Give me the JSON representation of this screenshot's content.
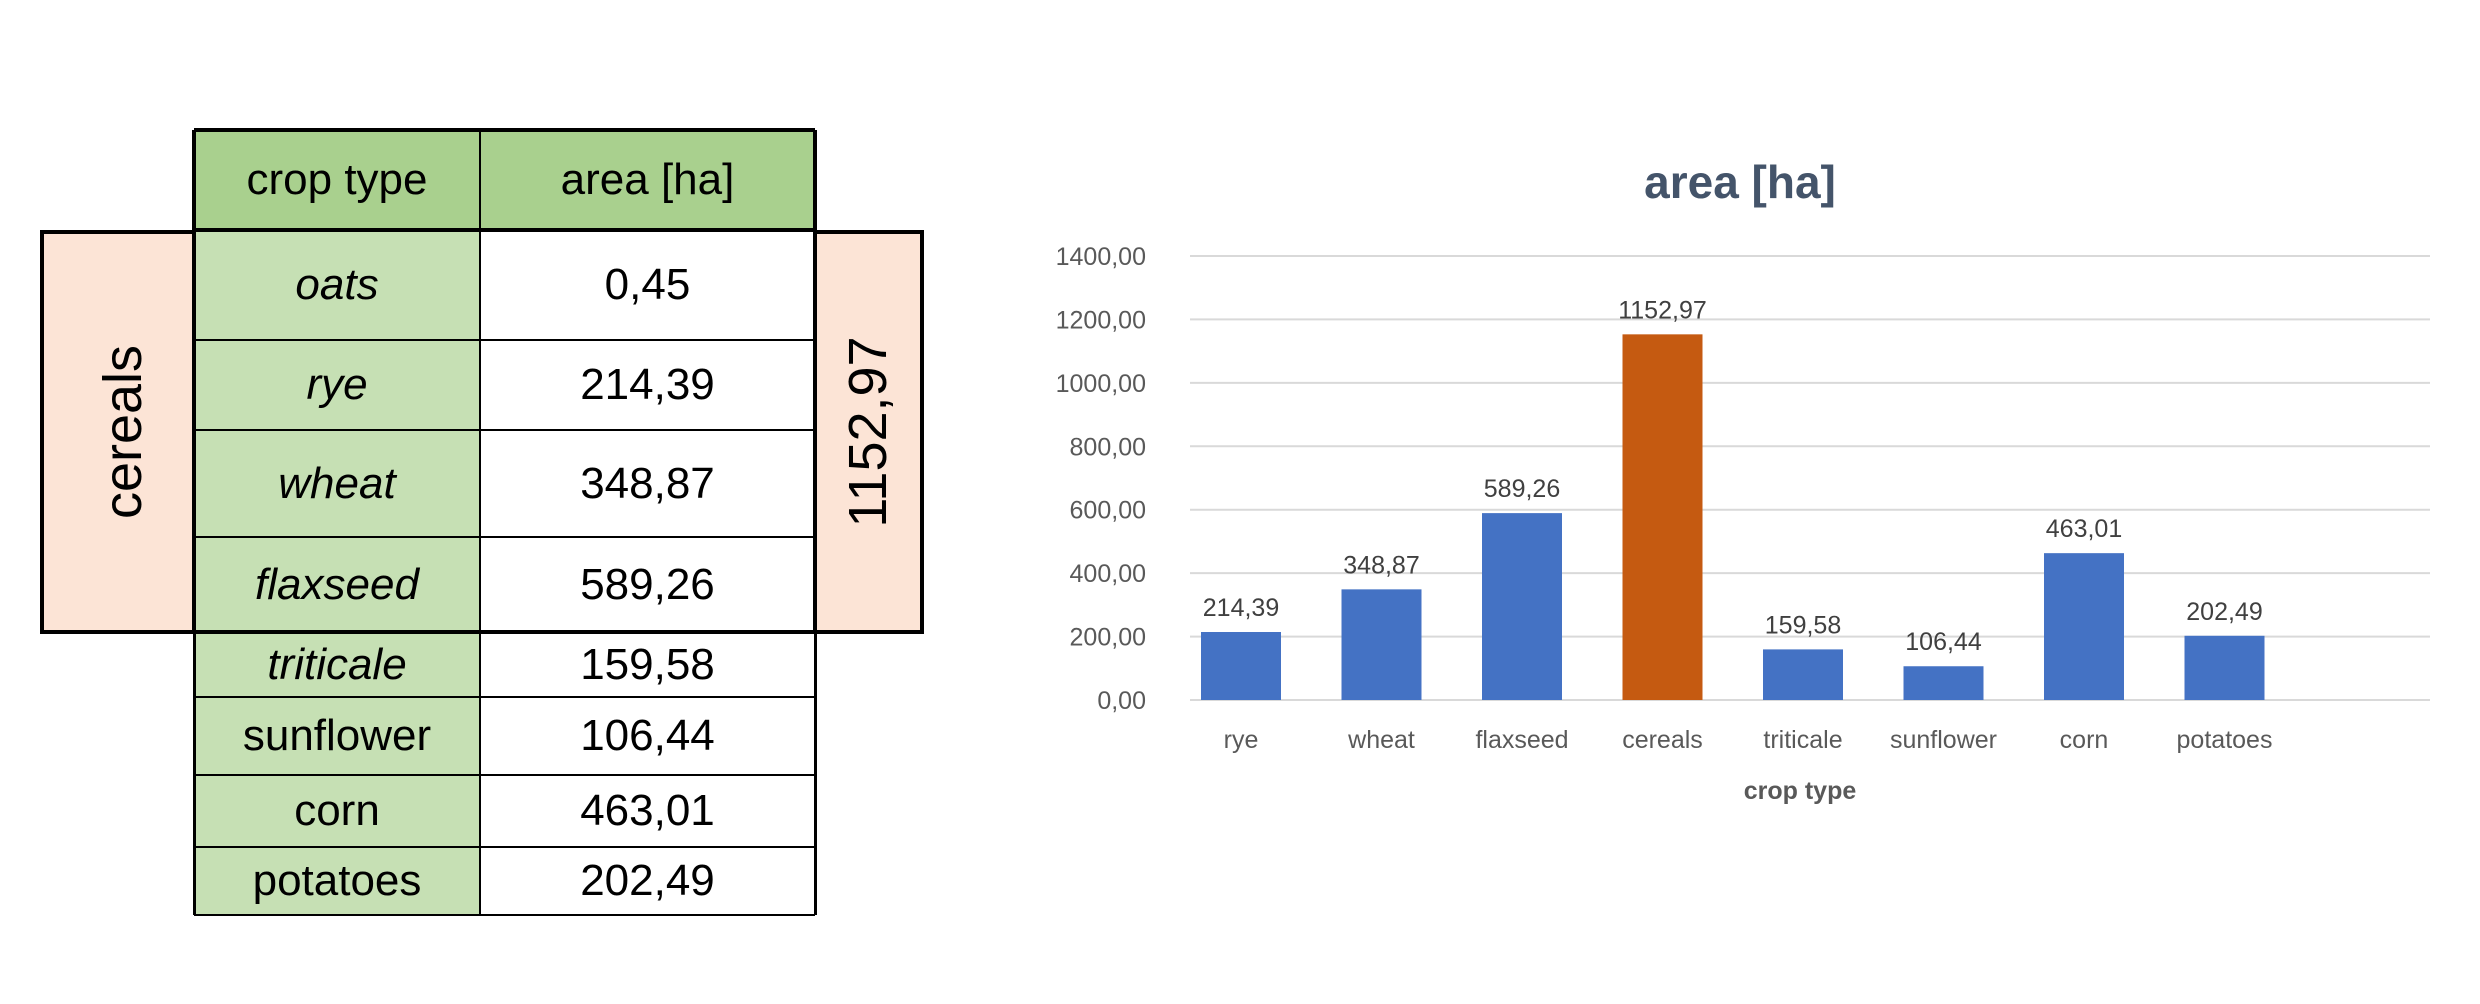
{
  "table": {
    "header": {
      "crop": "crop type",
      "area": "area [ha]"
    },
    "rows": [
      {
        "crop": "oats",
        "area": "0,45",
        "italic": true
      },
      {
        "crop": "rye",
        "area": "214,39",
        "italic": true
      },
      {
        "crop": "wheat",
        "area": "348,87",
        "italic": true
      },
      {
        "crop": "flaxseed",
        "area": "589,26",
        "italic": true
      },
      {
        "crop": "triticale",
        "area": "159,58",
        "italic": true
      },
      {
        "crop": "sunflower",
        "area": "106,44",
        "italic": false
      },
      {
        "crop": "corn",
        "area": "463,01",
        "italic": false
      },
      {
        "crop": "potatoes",
        "area": "202,49",
        "italic": false
      }
    ],
    "group_label": "cereals",
    "group_total": "1152,97"
  },
  "colors": {
    "header_bg": "#a9d08e",
    "crop_bg": "#c6e0b4",
    "group_bg": "#fce4d6",
    "bar_blue": "#4472c4",
    "bar_orange": "#c55a11"
  },
  "chart_data": {
    "type": "bar",
    "title": "area [ha]",
    "xlabel": "crop type",
    "ylabel": "",
    "categories": [
      "rye",
      "wheat",
      "flaxseed",
      "cereals",
      "triticale",
      "sunflower",
      "corn",
      "potatoes"
    ],
    "values": [
      214.39,
      348.87,
      589.26,
      1152.97,
      159.58,
      106.44,
      463.01,
      202.49
    ],
    "value_labels": [
      "214,39",
      "348,87",
      "589,26",
      "1152,97",
      "159,58",
      "106,44",
      "463,01",
      "202,49"
    ],
    "highlight_category": "cereals",
    "ylim": [
      0,
      1400
    ],
    "yticks": [
      0,
      200,
      400,
      600,
      800,
      1000,
      1200,
      1400
    ],
    "ytick_labels": [
      "0,00",
      "200,00",
      "400,00",
      "600,00",
      "800,00",
      "1000,00",
      "1200,00",
      "1400,00"
    ],
    "grid": true,
    "legend": "none"
  }
}
